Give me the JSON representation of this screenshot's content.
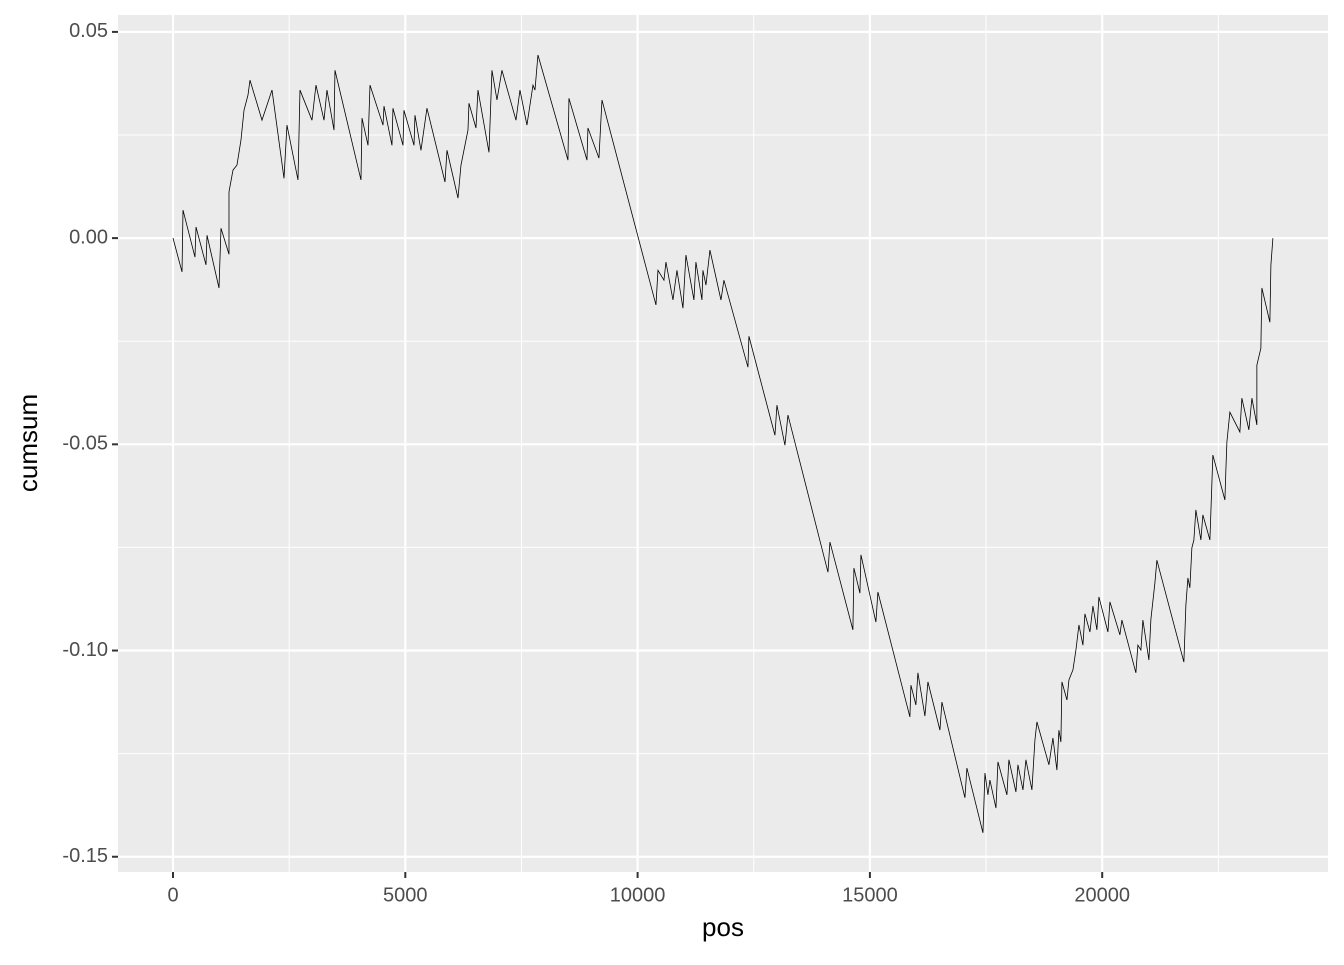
{
  "chart_data": {
    "type": "line",
    "x_label": "pos",
    "y_label": "cumsum",
    "x": [
      0,
      194,
      215,
      473,
      495,
      710,
      732,
      990,
      1033,
      1205,
      1205,
      1291,
      1377,
      1463,
      1528,
      1614,
      1657,
      1915,
      2131,
      2389,
      2453,
      2690,
      2733,
      2991,
      3077,
      3250,
      3314,
      3465,
      3486,
      4046,
      4068,
      4197,
      4240,
      4520,
      4541,
      4713,
      4734,
      4950,
      4971,
      5187,
      5208,
      5337,
      5466,
      5854,
      5897,
      6134,
      6198,
      6349,
      6370,
      6521,
      6564,
      6801,
      6865,
      6973,
      7080,
      7382,
      7468,
      7618,
      7748,
      7791,
      7855,
      8501,
      8522,
      8910,
      8931,
      9168,
      9233,
      10395,
      10438,
      10567,
      10610,
      10761,
      10847,
      10976,
      11040,
      11212,
      11255,
      11385,
      11406,
      11471,
      11557,
      11794,
      11858,
      12375,
      12396,
      12956,
      12999,
      13171,
      13236,
      14097,
      14140,
      14634,
      14656,
      14785,
      14807,
      15129,
      15172,
      15861,
      15883,
      15990,
      16033,
      16184,
      16249,
      16507,
      16550,
      17045,
      17088,
      17433,
      17476,
      17540,
      17583,
      17713,
      17756,
      17949,
      17992,
      18143,
      18186,
      18294,
      18358,
      18487,
      18552,
      18595,
      18853,
      18939,
      19025,
      19068,
      19111,
      19133,
      19241,
      19284,
      19370,
      19434,
      19499,
      19585,
      19628,
      19736,
      19800,
      19886,
      19929,
      20123,
      20166,
      20381,
      20424,
      20725,
      20768,
      20833,
      20876,
      21005,
      21048,
      21134,
      21177,
      21758,
      21801,
      21844,
      21887,
      21930,
      21973,
      22016,
      22124,
      22167,
      22318,
      22382,
      22641,
      22662,
      22684,
      22748,
      22963,
      23006,
      23157,
      23222,
      23329,
      23329,
      23415,
      23437,
      23609,
      23631,
      23674
    ],
    "values": [
      0,
      -0.0082,
      0.0068,
      -0.0046,
      0.0027,
      -0.0065,
      0.0007,
      -0.0121,
      0.0024,
      -0.0039,
      0.0112,
      0.0165,
      0.0177,
      0.0238,
      0.031,
      0.0347,
      0.0383,
      0.0286,
      0.0359,
      0.0145,
      0.0274,
      0.0141,
      0.0359,
      0.0286,
      0.0371,
      0.0286,
      0.0359,
      0.0262,
      0.0407,
      0.0141,
      0.0291,
      0.0225,
      0.0371,
      0.0274,
      0.032,
      0.0225,
      0.0315,
      0.0225,
      0.031,
      0.0225,
      0.0298,
      0.0213,
      0.0315,
      0.0136,
      0.0213,
      0.0097,
      0.0177,
      0.0262,
      0.0327,
      0.0267,
      0.0359,
      0.0208,
      0.0407,
      0.0335,
      0.0407,
      0.0286,
      0.0359,
      0.0274,
      0.0371,
      0.0359,
      0.0444,
      0.0189,
      0.0339,
      0.0189,
      0.0267,
      0.0194,
      0.0335,
      -0.0162,
      -0.0078,
      -0.0102,
      -0.0058,
      -0.015,
      -0.0078,
      -0.017,
      -0.0041,
      -0.015,
      -0.0058,
      -0.015,
      -0.0078,
      -0.0114,
      -0.0029,
      -0.015,
      -0.0102,
      -0.0313,
      -0.0238,
      -0.0478,
      -0.0405,
      -0.0502,
      -0.0429,
      -0.081,
      -0.0737,
      -0.095,
      -0.08,
      -0.0861,
      -0.0768,
      -0.0931,
      -0.0858,
      -0.1161,
      -0.1084,
      -0.1132,
      -0.1054,
      -0.1159,
      -0.1076,
      -0.1193,
      -0.1125,
      -0.1357,
      -0.1285,
      -0.1442,
      -0.1297,
      -0.135,
      -0.1314,
      -0.1382,
      -0.127,
      -0.135,
      -0.1265,
      -0.1343,
      -0.1277,
      -0.1338,
      -0.1265,
      -0.1338,
      -0.1217,
      -0.1173,
      -0.1277,
      -0.1212,
      -0.129,
      -0.1193,
      -0.1222,
      -0.1076,
      -0.112,
      -0.1071,
      -0.1047,
      -0.0999,
      -0.0938,
      -0.0987,
      -0.0911,
      -0.0955,
      -0.0892,
      -0.095,
      -0.087,
      -0.0955,
      -0.0882,
      -0.0962,
      -0.0926,
      -0.1054,
      -0.0987,
      -0.0999,
      -0.0926,
      -0.1023,
      -0.0924,
      -0.0836,
      -0.0781,
      -0.1028,
      -0.089,
      -0.0824,
      -0.0848,
      -0.0751,
      -0.0732,
      -0.0659,
      -0.0732,
      -0.0671,
      -0.0732,
      -0.0526,
      -0.0635,
      -0.0562,
      -0.0494,
      -0.0422,
      -0.047,
      -0.0388,
      -0.0465,
      -0.0388,
      -0.0453,
      -0.0308,
      -0.0267,
      -0.0121,
      -0.0204,
      -0.0065,
      0
    ],
    "color": "#000000",
    "xlim": [
      -1184,
      24860
    ],
    "ylim": [
      -0.1537,
      0.0541
    ],
    "xticks": [
      0,
      5000,
      10000,
      15000,
      20000
    ],
    "yticks": [
      0.05,
      {
        "value": 0,
        "label": "0.00"
      },
      -0.05,
      {
        "value": -0.1,
        "label": "-0.10"
      },
      -0.15
    ],
    "grid": true
  }
}
